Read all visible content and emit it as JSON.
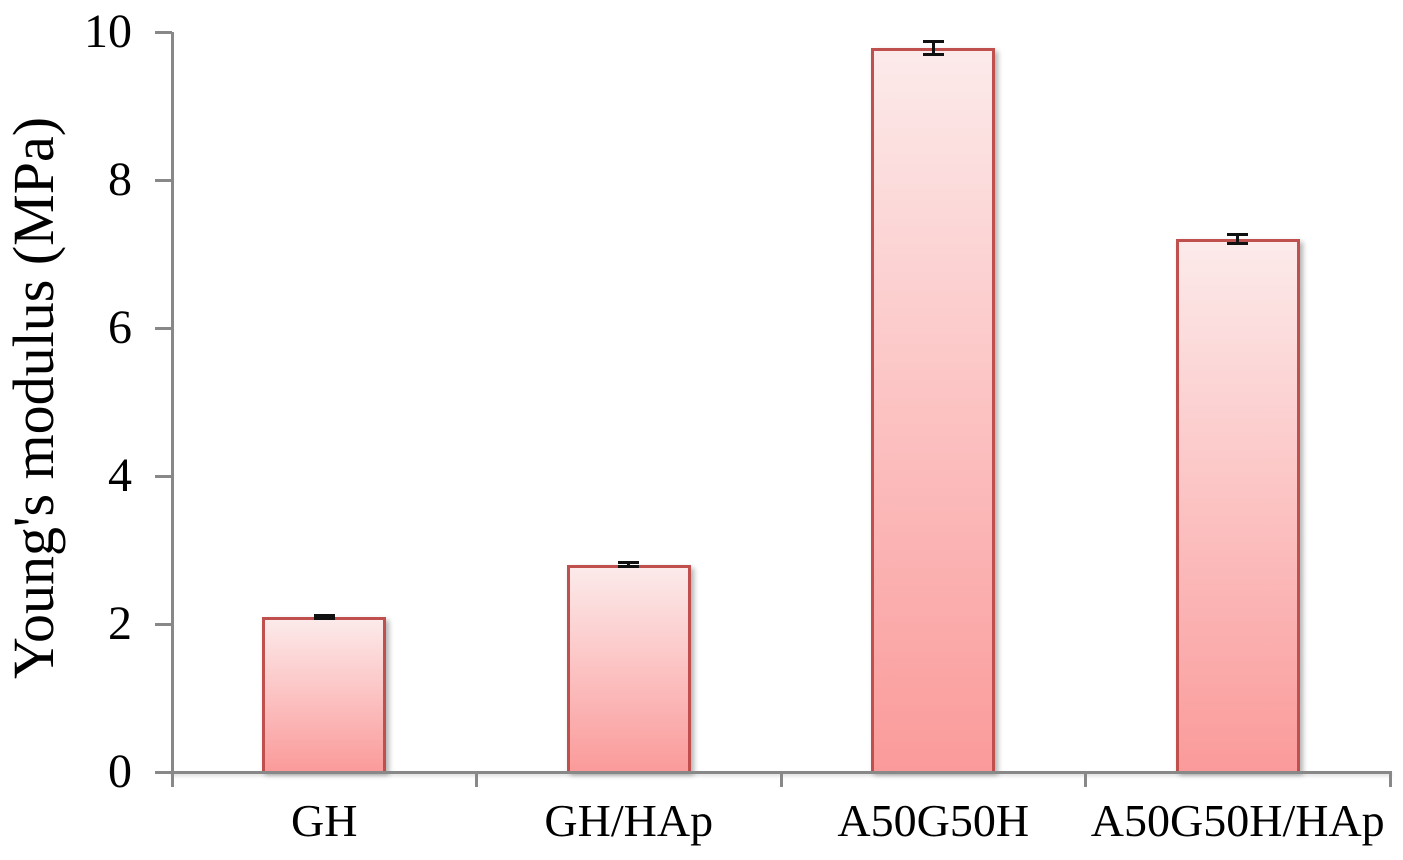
{
  "chart_data": {
    "type": "bar",
    "categories": [
      "GH",
      "GH/HAp",
      "A50G50H",
      "A50G50H/HAp"
    ],
    "values": [
      2.1,
      2.8,
      9.78,
      7.2
    ],
    "errors": [
      0.04,
      0.05,
      0.11,
      0.08
    ],
    "title": "",
    "xlabel": "",
    "ylabel": "Young's modulus (MPa)",
    "ylim": [
      0,
      10
    ],
    "yticks": [
      0,
      2,
      4,
      6,
      8,
      10
    ],
    "grid": false,
    "legend": "none",
    "colors": {
      "bar_fill_top": "#FCEAEA",
      "bar_fill_bottom": "#FB9A9A",
      "bar_border": "#C0504D",
      "error_bar": "#111111",
      "axis": "#888888",
      "text": "#000000",
      "background": "#FFFFFF"
    }
  }
}
